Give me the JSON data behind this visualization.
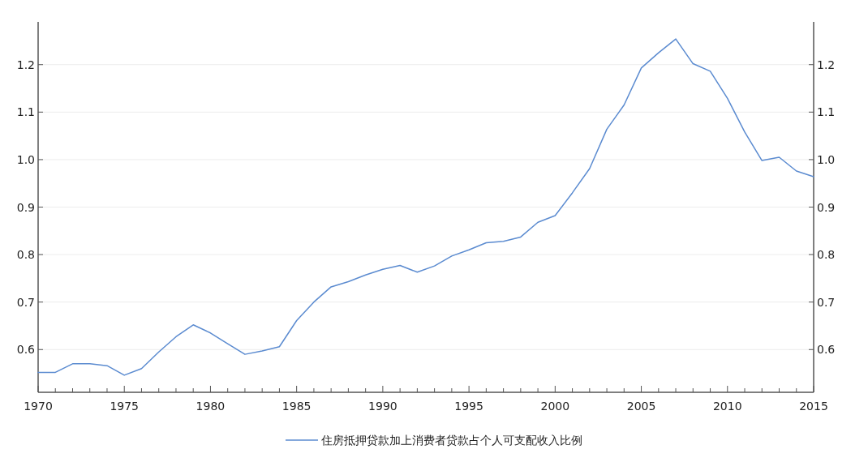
{
  "chart_data": {
    "type": "line",
    "x": [
      1970,
      1971,
      1972,
      1973,
      1974,
      1975,
      1976,
      1977,
      1978,
      1979,
      1980,
      1981,
      1982,
      1983,
      1984,
      1985,
      1986,
      1987,
      1988,
      1989,
      1990,
      1991,
      1992,
      1993,
      1994,
      1995,
      1996,
      1997,
      1998,
      1999,
      2000,
      2001,
      2002,
      2003,
      2004,
      2005,
      2006,
      2007,
      2008,
      2009,
      2010,
      2011,
      2012,
      2013,
      2014,
      2015
    ],
    "series": [
      {
        "name": "住房抵押贷款加上消费者贷款占个人可支配收入比例",
        "color": "#5b8bd0",
        "values": [
          0.552,
          0.552,
          0.57,
          0.57,
          0.566,
          0.546,
          0.56,
          0.595,
          0.627,
          0.652,
          0.635,
          0.612,
          0.59,
          0.597,
          0.606,
          0.661,
          0.7,
          0.732,
          0.743,
          0.757,
          0.769,
          0.777,
          0.763,
          0.776,
          0.797,
          0.81,
          0.825,
          0.828,
          0.837,
          0.868,
          0.882,
          0.93,
          0.981,
          1.064,
          1.115,
          1.193,
          1.225,
          1.254,
          1.202,
          1.186,
          1.129,
          1.058,
          0.998,
          1.005,
          0.976,
          0.964
        ]
      }
    ],
    "xlim": [
      1970,
      2015
    ],
    "xticks": [
      1970,
      {
        "value": 1971,
        "label": null
      },
      {
        "value": 1972,
        "label": null
      },
      {
        "value": 1973,
        "label": null
      },
      {
        "value": 1974,
        "label": null
      },
      1975,
      {
        "value": 1976,
        "label": null
      },
      {
        "value": 1977,
        "label": null
      },
      {
        "value": 1978,
        "label": null
      },
      {
        "value": 1979,
        "label": null
      },
      1980,
      {
        "value": 1981,
        "label": null
      },
      {
        "value": 1982,
        "label": null
      },
      {
        "value": 1983,
        "label": null
      },
      {
        "value": 1984,
        "label": null
      },
      1985,
      {
        "value": 1986,
        "label": null
      },
      {
        "value": 1987,
        "label": null
      },
      {
        "value": 1988,
        "label": null
      },
      {
        "value": 1989,
        "label": null
      },
      1990,
      {
        "value": 1991,
        "label": null
      },
      {
        "value": 1992,
        "label": null
      },
      {
        "value": 1993,
        "label": null
      },
      {
        "value": 1994,
        "label": null
      },
      1995,
      {
        "value": 1996,
        "label": null
      },
      {
        "value": 1997,
        "label": null
      },
      {
        "value": 1998,
        "label": null
      },
      {
        "value": 1999,
        "label": null
      },
      2000,
      {
        "value": 2001,
        "label": null
      },
      {
        "value": 2002,
        "label": null
      },
      {
        "value": 2003,
        "label": null
      },
      {
        "value": 2004,
        "label": null
      },
      2005,
      {
        "value": 2006,
        "label": null
      },
      {
        "value": 2007,
        "label": null
      },
      {
        "value": 2008,
        "label": null
      },
      {
        "value": 2009,
        "label": null
      },
      2010,
      {
        "value": 2011,
        "label": null
      },
      {
        "value": 2012,
        "label": null
      },
      {
        "value": 2013,
        "label": null
      },
      {
        "value": 2014,
        "label": null
      },
      2015
    ],
    "ylim": [
      0.51,
      1.29
    ],
    "yticks": [
      {
        "value": 0.6,
        "label": "0.6"
      },
      {
        "value": 0.7,
        "label": "0.7"
      },
      {
        "value": 0.8,
        "label": "0.8"
      },
      {
        "value": 0.9,
        "label": "0.9"
      },
      {
        "value": 1.0,
        "label": "1.0"
      },
      {
        "value": 1.1,
        "label": "1.1"
      },
      {
        "value": 1.2,
        "label": "1.2"
      }
    ],
    "y2lim": [
      0.51,
      1.29
    ],
    "y2ticks": [
      {
        "value": 0.6,
        "label": "0.6"
      },
      {
        "value": 0.7,
        "label": "0.7"
      },
      {
        "value": 0.8,
        "label": "0.8"
      },
      {
        "value": 0.9,
        "label": "0.9"
      },
      {
        "value": 1.0,
        "label": "1.0"
      },
      {
        "value": 1.1,
        "label": "1.1"
      },
      {
        "value": 1.2,
        "label": "1.2"
      }
    ],
    "grid": "y",
    "legend": "bottom"
  }
}
